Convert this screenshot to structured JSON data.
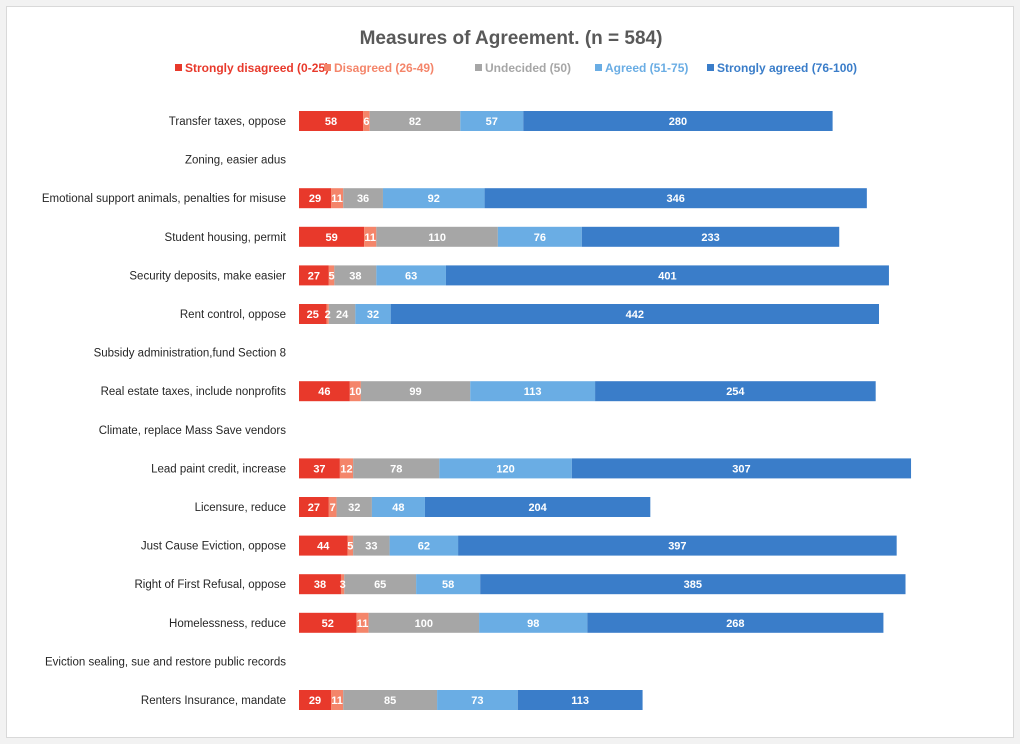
{
  "chart_data": {
    "type": "bar",
    "orientation": "horizontal",
    "stacked": true,
    "title": "Measures of Agreement. (n = 584)",
    "xlabel": "",
    "ylabel": "",
    "xlim": [
      0,
      630
    ],
    "grid": false,
    "legend_position": "top",
    "categories": [
      "Transfer taxes, oppose",
      "Zoning, easier adus",
      "Emotional support animals, penalties for misuse",
      "Student housing, permit",
      "Security deposits, make easier",
      "Rent control, oppose",
      "Subsidy administration,fund Section 8",
      "Real estate taxes, include nonprofits",
      "Climate, replace Mass Save vendors",
      "Lead paint credit, increase",
      "Licensure, reduce",
      "Just Cause Eviction, oppose",
      "Right of First Refusal, oppose",
      "Homelessness, reduce",
      "Eviction sealing, sue and restore public records",
      "Renters Insurance, mandate"
    ],
    "series": [
      {
        "name": "Strongly disagreed (0-25)",
        "color": "#e8392b",
        "values": [
          58,
          null,
          29,
          59,
          27,
          25,
          null,
          46,
          null,
          37,
          27,
          44,
          38,
          52,
          null,
          29
        ]
      },
      {
        "name": "Disagreed (26-49)",
        "color": "#f4856a",
        "values": [
          6,
          null,
          11,
          11,
          5,
          2,
          null,
          10,
          null,
          12,
          7,
          5,
          3,
          11,
          null,
          11
        ]
      },
      {
        "name": "Undecided (50)",
        "color": "#a6a6a6",
        "values": [
          82,
          null,
          36,
          110,
          38,
          24,
          null,
          99,
          null,
          78,
          32,
          33,
          65,
          100,
          null,
          85
        ]
      },
      {
        "name": "Agreed (51-75)",
        "color": "#6aade4",
        "values": [
          57,
          null,
          92,
          76,
          63,
          32,
          null,
          113,
          null,
          120,
          48,
          62,
          58,
          98,
          null,
          73
        ]
      },
      {
        "name": "Strongly agreed (76-100)",
        "color": "#3a7dc9",
        "values": [
          280,
          null,
          346,
          233,
          401,
          442,
          null,
          254,
          null,
          307,
          204,
          397,
          385,
          268,
          null,
          113
        ]
      }
    ]
  }
}
